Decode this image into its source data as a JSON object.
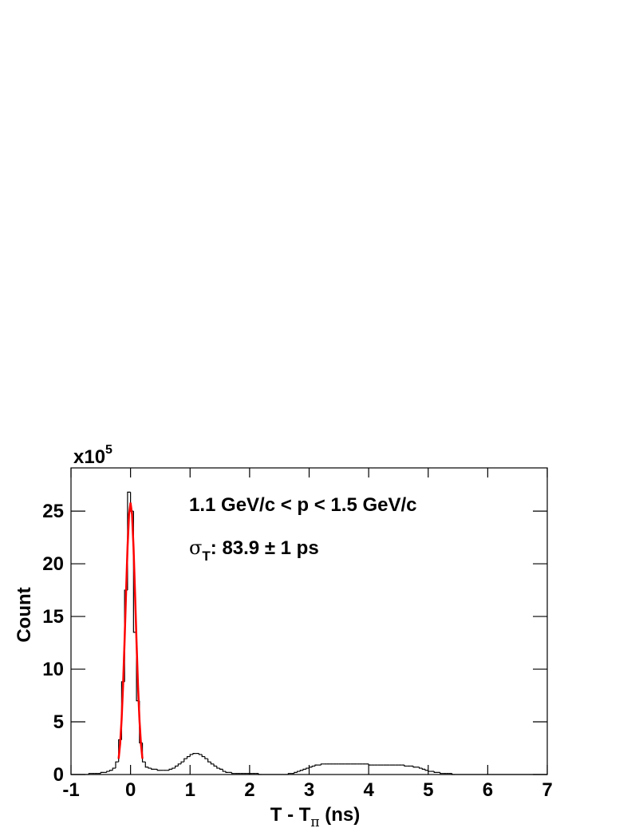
{
  "chart_data": {
    "type": "histogram",
    "y_multiplier": {
      "base": "x10",
      "exponent": "5"
    },
    "annotations": [
      {
        "text": "1.1 GeV/c < p < 1.5 GeV/c"
      },
      {
        "symbol": "σ",
        "subscript": "T",
        "text": ": 83.9 ± 1 ps"
      }
    ],
    "x_label": {
      "text": "T - T",
      "subscript": "π",
      "suffix": " (ns)"
    },
    "y_label": "Count",
    "xlim": [
      -1,
      7
    ],
    "ylim": [
      0,
      29.1
    ],
    "xticks": [
      -1,
      0,
      1,
      2,
      3,
      4,
      5,
      6,
      7
    ],
    "yticks": [
      0,
      5,
      10,
      15,
      20,
      25
    ],
    "color": "#000000",
    "bins": [
      -1,
      -0.95,
      -0.9,
      -0.85,
      -0.8,
      -0.75,
      -0.7,
      -0.65,
      -0.6,
      -0.55,
      -0.5,
      -0.45,
      -0.4,
      -0.35,
      -0.3,
      -0.25,
      -0.2,
      -0.15,
      -0.1,
      -0.05,
      0,
      0.05,
      0.1,
      0.15,
      0.2,
      0.25,
      0.3,
      0.35,
      0.4,
      0.45,
      0.5,
      0.55,
      0.6,
      0.65,
      0.7,
      0.75,
      0.8,
      0.85,
      0.9,
      0.95,
      1,
      1.05,
      1.1,
      1.15,
      1.2,
      1.25,
      1.3,
      1.35,
      1.4,
      1.45,
      1.5,
      1.55,
      1.6,
      1.65,
      1.7,
      1.75,
      1.8,
      1.85,
      1.9,
      1.95,
      2,
      2.05,
      2.1,
      2.15,
      2.2,
      2.25,
      2.3,
      2.35,
      2.4,
      2.45,
      2.5,
      2.55,
      2.6,
      2.65,
      2.7,
      2.75,
      2.8,
      2.85,
      2.9,
      2.95,
      3,
      3.05,
      3.1,
      3.15,
      3.2,
      3.25,
      3.3,
      3.35,
      3.4,
      3.45,
      3.5,
      3.55,
      3.6,
      3.65,
      3.7,
      3.75,
      3.8,
      3.85,
      3.9,
      3.95,
      4,
      4.05,
      4.1,
      4.15,
      4.2,
      4.25,
      4.3,
      4.35,
      4.4,
      4.45,
      4.5,
      4.55,
      4.6,
      4.65,
      4.7,
      4.75,
      4.8,
      4.85,
      4.9,
      4.95,
      5,
      5.05,
      5.1,
      5.15,
      5.2,
      5.25,
      5.3,
      5.35,
      5.4,
      5.45,
      5.5,
      5.55,
      5.6,
      5.65,
      5.7,
      5.75,
      5.8,
      5.85,
      5.9,
      5.95,
      6,
      6.05,
      6.1,
      6.15,
      6.2,
      6.25,
      6.3,
      6.35,
      6.4,
      6.45,
      6.5,
      6.55,
      6.6,
      6.65,
      6.7,
      6.75,
      6.8,
      6.85,
      6.9,
      6.95,
      7
    ],
    "counts": [
      0,
      0,
      0,
      0,
      0,
      0,
      0.1,
      0.1,
      0.1,
      0.1,
      0.2,
      0.2,
      0.3,
      0.4,
      0.6,
      1.2,
      3.3,
      8.8,
      17.5,
      26.8,
      25.0,
      13.5,
      7.0,
      3.0,
      1.2,
      0.7,
      0.6,
      0.5,
      0.5,
      0.4,
      0.4,
      0.4,
      0.4,
      0.5,
      0.6,
      0.8,
      1.0,
      1.2,
      1.5,
      1.7,
      1.9,
      2.0,
      2.0,
      1.9,
      1.7,
      1.5,
      1.2,
      1.0,
      0.8,
      0.6,
      0.5,
      0.3,
      0.2,
      0.2,
      0.1,
      0.1,
      0.1,
      0.1,
      0.1,
      0.1,
      0.1,
      0.1,
      0.1,
      0,
      0,
      0,
      0,
      0,
      0,
      0,
      0,
      0,
      0,
      0.1,
      0.1,
      0.2,
      0.3,
      0.4,
      0.5,
      0.6,
      0.7,
      0.8,
      0.9,
      0.9,
      1.0,
      1.0,
      1.0,
      1.0,
      1.0,
      1.0,
      1.0,
      1.0,
      1.0,
      1.0,
      1.0,
      1.0,
      1.0,
      1.0,
      1.0,
      1.0,
      0.9,
      0.9,
      0.9,
      0.9,
      0.9,
      0.9,
      0.9,
      0.9,
      0.9,
      0.9,
      0.9,
      0.9,
      0.8,
      0.8,
      0.8,
      0.7,
      0.7,
      0.6,
      0.5,
      0.4,
      0.3,
      0.3,
      0.2,
      0.2,
      0.1,
      0.1,
      0.1,
      0.1,
      0,
      0,
      0,
      0,
      0,
      0,
      0,
      0,
      0,
      0,
      0,
      0,
      0,
      0,
      0,
      0,
      0,
      0,
      0,
      0,
      0,
      0,
      0,
      0,
      0,
      0,
      0,
      0,
      0,
      0,
      0,
      0
    ],
    "fit": {
      "type": "line",
      "color": "#ff0000",
      "x": [
        -0.2,
        -0.175,
        -0.15,
        -0.125,
        -0.1,
        -0.075,
        -0.05,
        -0.025,
        0,
        0.025,
        0.05,
        0.075,
        0.1,
        0.125,
        0.15,
        0.175,
        0.2
      ],
      "values": [
        1.5,
        2.9,
        5.2,
        8.5,
        12.7,
        17.3,
        21.6,
        24.7,
        25.8,
        24.7,
        21.6,
        17.3,
        12.7,
        8.5,
        5.2,
        2.9,
        1.5
      ]
    }
  }
}
